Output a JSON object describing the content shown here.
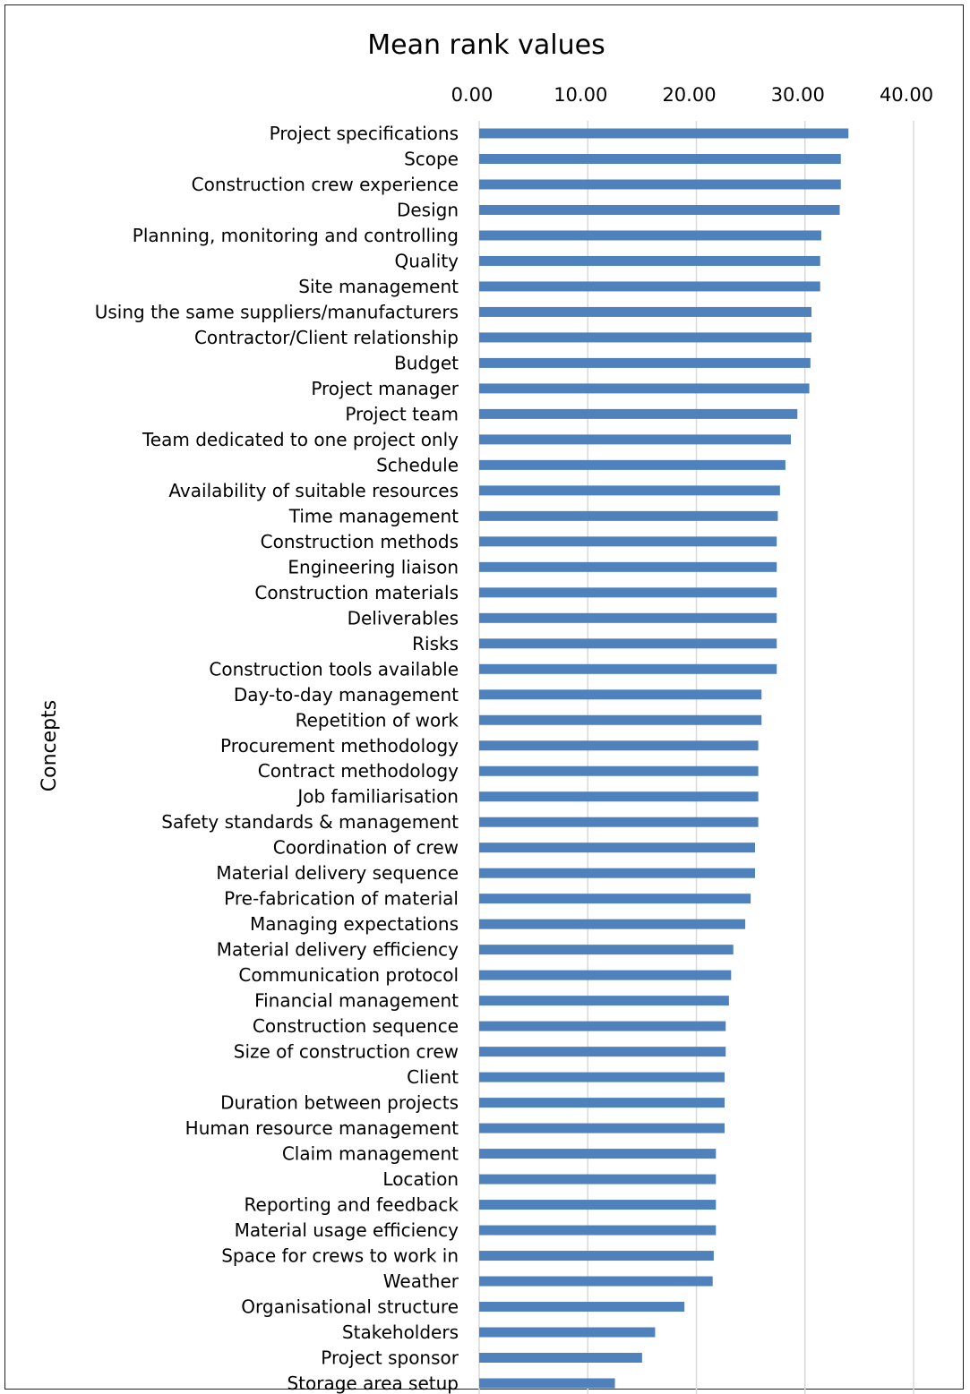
{
  "chart_data": {
    "type": "bar",
    "orientation": "horizontal",
    "title": "Mean rank values",
    "xlabel": "",
    "ylabel": "Concepts",
    "xlim": [
      0,
      40
    ],
    "xticks": [
      "0.00",
      "10.00",
      "20.00",
      "30.00",
      "40.00"
    ],
    "xaxis_position": "top",
    "grid": true,
    "bar_color": "#4f81bd",
    "categories": [
      "Project specifications",
      "Scope",
      "Construction crew experience",
      "Design",
      "Planning, monitoring and controlling",
      "Quality",
      "Site management",
      "Using the same suppliers/manufacturers",
      "Contractor/Client relationship",
      "Budget",
      "Project manager",
      "Project team",
      "Team dedicated to one project only",
      "Schedule",
      "Availability of suitable resources",
      "Time management",
      "Construction methods",
      "Engineering liaison",
      "Construction materials",
      "Deliverables",
      "Risks",
      "Construction tools available",
      "Day-to-day management",
      "Repetition of work",
      "Procurement methodology",
      "Contract methodology",
      "Job familiarisation",
      "Safety standards & management",
      "Coordination of crew",
      "Material delivery sequence",
      "Pre-fabrication of material",
      "Managing expectations",
      "Material delivery efficiency",
      "Communication protocol",
      "Financial management",
      "Construction sequence",
      "Size of construction crew",
      "Client",
      "Duration between projects",
      "Human resource management",
      "Claim management",
      "Location",
      "Reporting and feedback",
      "Material usage efficiency",
      "Space for crews to work in",
      "Weather",
      "Organisational structure",
      "Stakeholders",
      "Project sponsor",
      "Storage area setup"
    ],
    "values": [
      34.0,
      33.3,
      33.3,
      33.2,
      31.5,
      31.4,
      31.4,
      30.6,
      30.6,
      30.5,
      30.4,
      29.3,
      28.7,
      28.2,
      27.7,
      27.5,
      27.4,
      27.4,
      27.4,
      27.4,
      27.4,
      27.4,
      26.0,
      26.0,
      25.7,
      25.7,
      25.7,
      25.7,
      25.4,
      25.4,
      25.0,
      24.5,
      23.4,
      23.2,
      23.0,
      22.7,
      22.7,
      22.6,
      22.6,
      22.6,
      21.8,
      21.8,
      21.8,
      21.8,
      21.6,
      21.5,
      18.9,
      16.2,
      15.0,
      12.5
    ]
  }
}
